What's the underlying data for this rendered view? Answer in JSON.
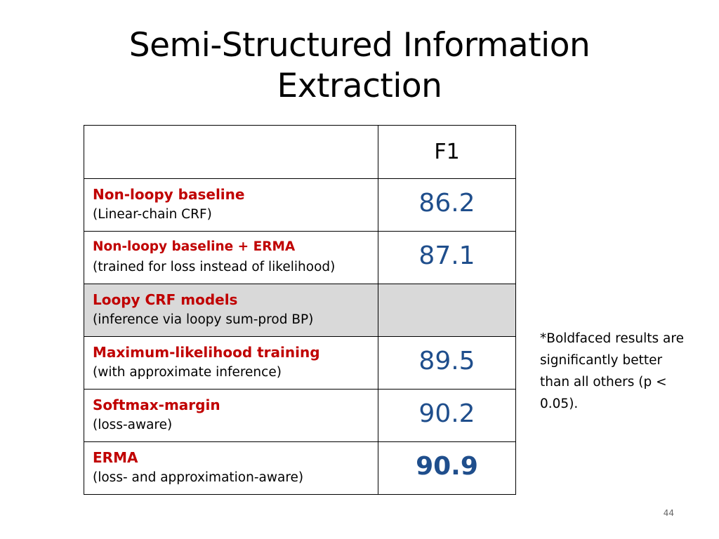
{
  "slide": {
    "title_line1": "Semi-Structured Information",
    "title_line2": "Extraction",
    "page_number": "44",
    "note": "*Boldfaced results are significantly better than all others (p < 0.05)."
  },
  "table": {
    "header": {
      "label": "",
      "value": "F1"
    },
    "rows": [
      {
        "name": "Non-loopy baseline",
        "sub": "(Linear-chain CRF)",
        "value": "86.2",
        "bold": false,
        "shaded": false
      },
      {
        "name": "Non-loopy baseline + ERMA",
        "sub": "(trained for loss instead of likelihood)",
        "value": "87.1",
        "bold": false,
        "shaded": false
      },
      {
        "name": "Loopy CRF models",
        "sub": "(inference via loopy sum-prod BP)",
        "value": "",
        "bold": false,
        "shaded": true
      },
      {
        "name": "Maximum-likelihood training",
        "sub": "(with approximate inference)",
        "value": "89.5",
        "bold": false,
        "shaded": false
      },
      {
        "name": "Softmax-margin",
        "sub": "(loss-aware)",
        "value": "90.2",
        "bold": false,
        "shaded": false
      },
      {
        "name": "ERMA",
        "sub": "(loss- and approximation-aware)",
        "value": "90.9",
        "bold": true,
        "shaded": false
      }
    ]
  },
  "colors": {
    "method_name": "#c00000",
    "value": "#1f4e8c",
    "shaded_row": "#d9d9d9"
  }
}
